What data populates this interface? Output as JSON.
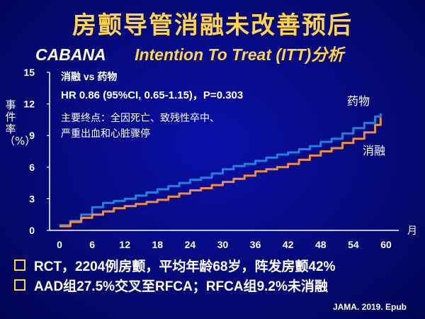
{
  "title": "房颤导管消融未改善预后",
  "subtitle": {
    "trial": "CABANA",
    "analysis": "Intention To Treat (ITT)分析"
  },
  "chart_data": {
    "type": "line",
    "ylabel": "事件率（%）",
    "xlabel": "月",
    "xlim": [
      0,
      60
    ],
    "ylim": [
      0,
      15
    ],
    "xticks": [
      0,
      6,
      12,
      18,
      24,
      30,
      36,
      42,
      48,
      54,
      60
    ],
    "yticks": [
      0,
      3,
      6,
      9,
      12,
      15
    ],
    "annotations": {
      "comparison": "消融 vs 药物",
      "hr": "HR 0.86 (95%CI, 0.65-1.15)，P=0.303",
      "endpoint_line1": "主要终点：全因死亡、致残性卒中、",
      "endpoint_line2": "严重出血和心脏骤停"
    },
    "series": [
      {
        "name": "药物",
        "color": "#1e82dc",
        "x": [
          0,
          2,
          4,
          6,
          8,
          10,
          12,
          14,
          16,
          18,
          20,
          22,
          24,
          26,
          28,
          30,
          32,
          34,
          36,
          38,
          40,
          42,
          44,
          46,
          48,
          50,
          52,
          54,
          56,
          58,
          59
        ],
        "y": [
          0.5,
          0.9,
          1.5,
          2.2,
          2.6,
          2.8,
          3.0,
          3.3,
          3.6,
          3.9,
          4.2,
          4.5,
          4.8,
          5.0,
          5.4,
          5.8,
          6.1,
          6.3,
          6.6,
          6.9,
          7.2,
          7.4,
          7.7,
          8.0,
          8.4,
          8.7,
          9.2,
          9.7,
          10.2,
          10.8,
          11.1
        ]
      },
      {
        "name": "消融",
        "color": "#f08c3c",
        "x": [
          0,
          2,
          4,
          6,
          8,
          10,
          12,
          14,
          16,
          18,
          20,
          22,
          24,
          26,
          28,
          30,
          32,
          34,
          36,
          38,
          40,
          42,
          44,
          46,
          48,
          50,
          52,
          54,
          56,
          58,
          59
        ],
        "y": [
          0.4,
          0.8,
          1.2,
          1.5,
          1.8,
          2.1,
          2.3,
          2.5,
          2.7,
          2.9,
          3.2,
          3.5,
          3.8,
          4.0,
          4.3,
          4.6,
          4.9,
          5.2,
          5.6,
          5.8,
          6.0,
          6.3,
          6.7,
          7.1,
          7.5,
          7.8,
          8.3,
          8.7,
          9.3,
          10.0,
          10.7
        ]
      }
    ]
  },
  "bullets": [
    "RCT，2204例房颤，平均年龄68岁，阵发房颤42%",
    "AAD组27.5%交叉至RFCA；RFCA组9.2%未消融"
  ],
  "source": "JAMA. 2019. Epub"
}
